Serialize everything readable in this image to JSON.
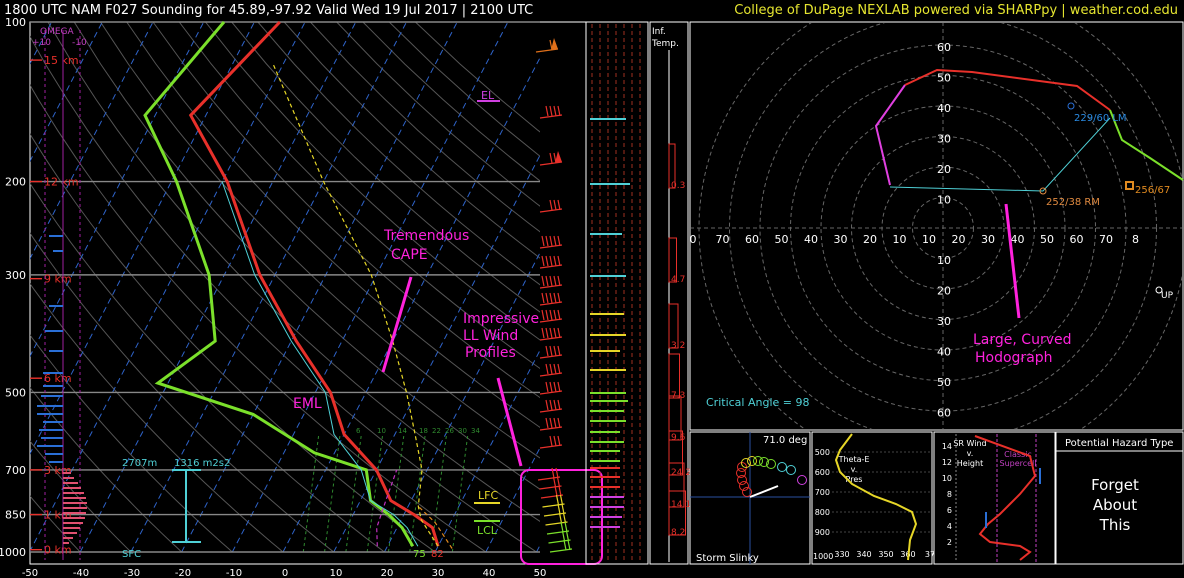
{
  "header": {
    "left_title": "1800 UTC NAM F027 Sounding for 45.89,-97.92 Valid  Wed 19 Jul 2017 | 2100 UTC",
    "right_title": "College of DuPage NEXLAB powered via SHARPpy | weather.cod.edu"
  },
  "colors": {
    "temperature": "#e8302a",
    "dewpoint": "#7be02b",
    "parcel": "#e6d627",
    "wetbulb": "#4fd0d6",
    "annotation": "#ff22dd",
    "height_label": "#e8302a",
    "mixing_ratio": "#2f8a2f",
    "isotherm": "#2e63c9"
  },
  "skewt": {
    "pressure_ticks": [
      "100",
      "200",
      "300",
      "500",
      "700",
      "850",
      "1000"
    ],
    "temp_ticks": [
      "-50",
      "-40",
      "-30",
      "-20",
      "-10",
      "0",
      "10",
      "20",
      "30",
      "40",
      "50"
    ],
    "height_labels": [
      "15 km",
      "12 km",
      "9 km",
      "6 km",
      "3 km",
      "1 km",
      "0 km"
    ],
    "omega": {
      "title": "OMEGA",
      "left": "+10",
      "right": "-10"
    },
    "levels": {
      "el": "EL",
      "lfc": "LFC",
      "lcl": "LCL"
    },
    "mixing_ratio_labels": [
      "6",
      "10",
      "14",
      "18",
      "22",
      "26",
      "30",
      "34"
    ],
    "srh": {
      "height": "2707m",
      "value": "1316 m2s2"
    },
    "sfc_label": "SFC",
    "surface": {
      "dewpoint": "75",
      "temperature": "82"
    },
    "annotations": {
      "cape": "Tremendous\nCAPE",
      "eml": "EML",
      "ll_wind": "Impressive\nLL Wind\nProfiles"
    }
  },
  "chart_data": [
    {
      "type": "line",
      "title": "",
      "x_unit": "C",
      "y_unit": "hPa",
      "ylim": [
        1000,
        100
      ],
      "xlim": [
        -50,
        50
      ],
      "series": [
        {
          "name": "",
          "points": [
            [
              30,
              975
            ],
            [
              27,
              900
            ],
            [
              22,
              850
            ],
            [
              16,
              800
            ],
            [
              10,
              700
            ],
            [
              0,
              600
            ],
            [
              -7,
              500
            ],
            [
              -19,
              400
            ],
            [
              -33,
              300
            ],
            [
              -49,
              200
            ],
            [
              -63,
              150
            ],
            [
              -55,
              100
            ]
          ]
        },
        {
          "name": "",
          "points": [
            [
              25,
              975
            ],
            [
              21,
              900
            ],
            [
              17,
              850
            ],
            [
              12,
              800
            ],
            [
              8,
              700
            ],
            [
              -4,
              650
            ],
            [
              -20,
              550
            ],
            [
              -42,
              480
            ],
            [
              -35,
              400
            ],
            [
              -43,
              300
            ],
            [
              -59,
              200
            ],
            [
              -72,
              150
            ],
            [
              -66,
              100
            ]
          ]
        }
      ]
    },
    {
      "type": "line",
      "title": "",
      "rings": [
        10,
        20,
        30,
        40,
        50,
        60,
        70,
        80
      ],
      "storm_motions": [
        {
          "label": "229/60 LM"
        },
        {
          "label": "252/38 RM"
        },
        {
          "label": "256/67"
        }
      ],
      "critical_angle": "Critical Angle = 98",
      "annotation": "Large, Curved\nHodograph",
      "right_labels": [
        "0",
        "70",
        "60",
        "50",
        "40",
        "30",
        "20",
        "10",
        "10",
        "20",
        "30",
        "40",
        "50",
        "60",
        "70",
        "8"
      ],
      "up_labels": [
        "60",
        "50",
        "40",
        "30",
        "20",
        "10"
      ],
      "down_labels": [
        "10",
        "20",
        "30",
        "40",
        "50",
        "60"
      ],
      "corner_label": "UP"
    }
  ],
  "inf_temp": {
    "title_line1": "Inf.",
    "title_line2": "Temp.",
    "values": [
      "0.3",
      "4.7",
      "3.2",
      "7.3",
      "9.6",
      "24.2",
      "14.1",
      "8.2"
    ]
  },
  "slinky": {
    "title": "Storm Slinky",
    "angle": "71.0 deg"
  },
  "theta_e": {
    "title": "Theta-E\nv.\nPres",
    "y_ticks": [
      "500",
      "600",
      "700",
      "800",
      "900"
    ],
    "x_ticks": [
      "330",
      "340",
      "350",
      "360",
      "37"
    ],
    "corner": "1000"
  },
  "sr_wind": {
    "title": "SR Wind\nv.\nHeight",
    "y_ticks": [
      "14",
      "12",
      "10",
      "8",
      "6",
      "4",
      "2"
    ],
    "label": "Classic\nSupercell"
  },
  "hazard": {
    "title": "Potential Hazard Type",
    "text": "Forget\nAbout\nThis"
  }
}
